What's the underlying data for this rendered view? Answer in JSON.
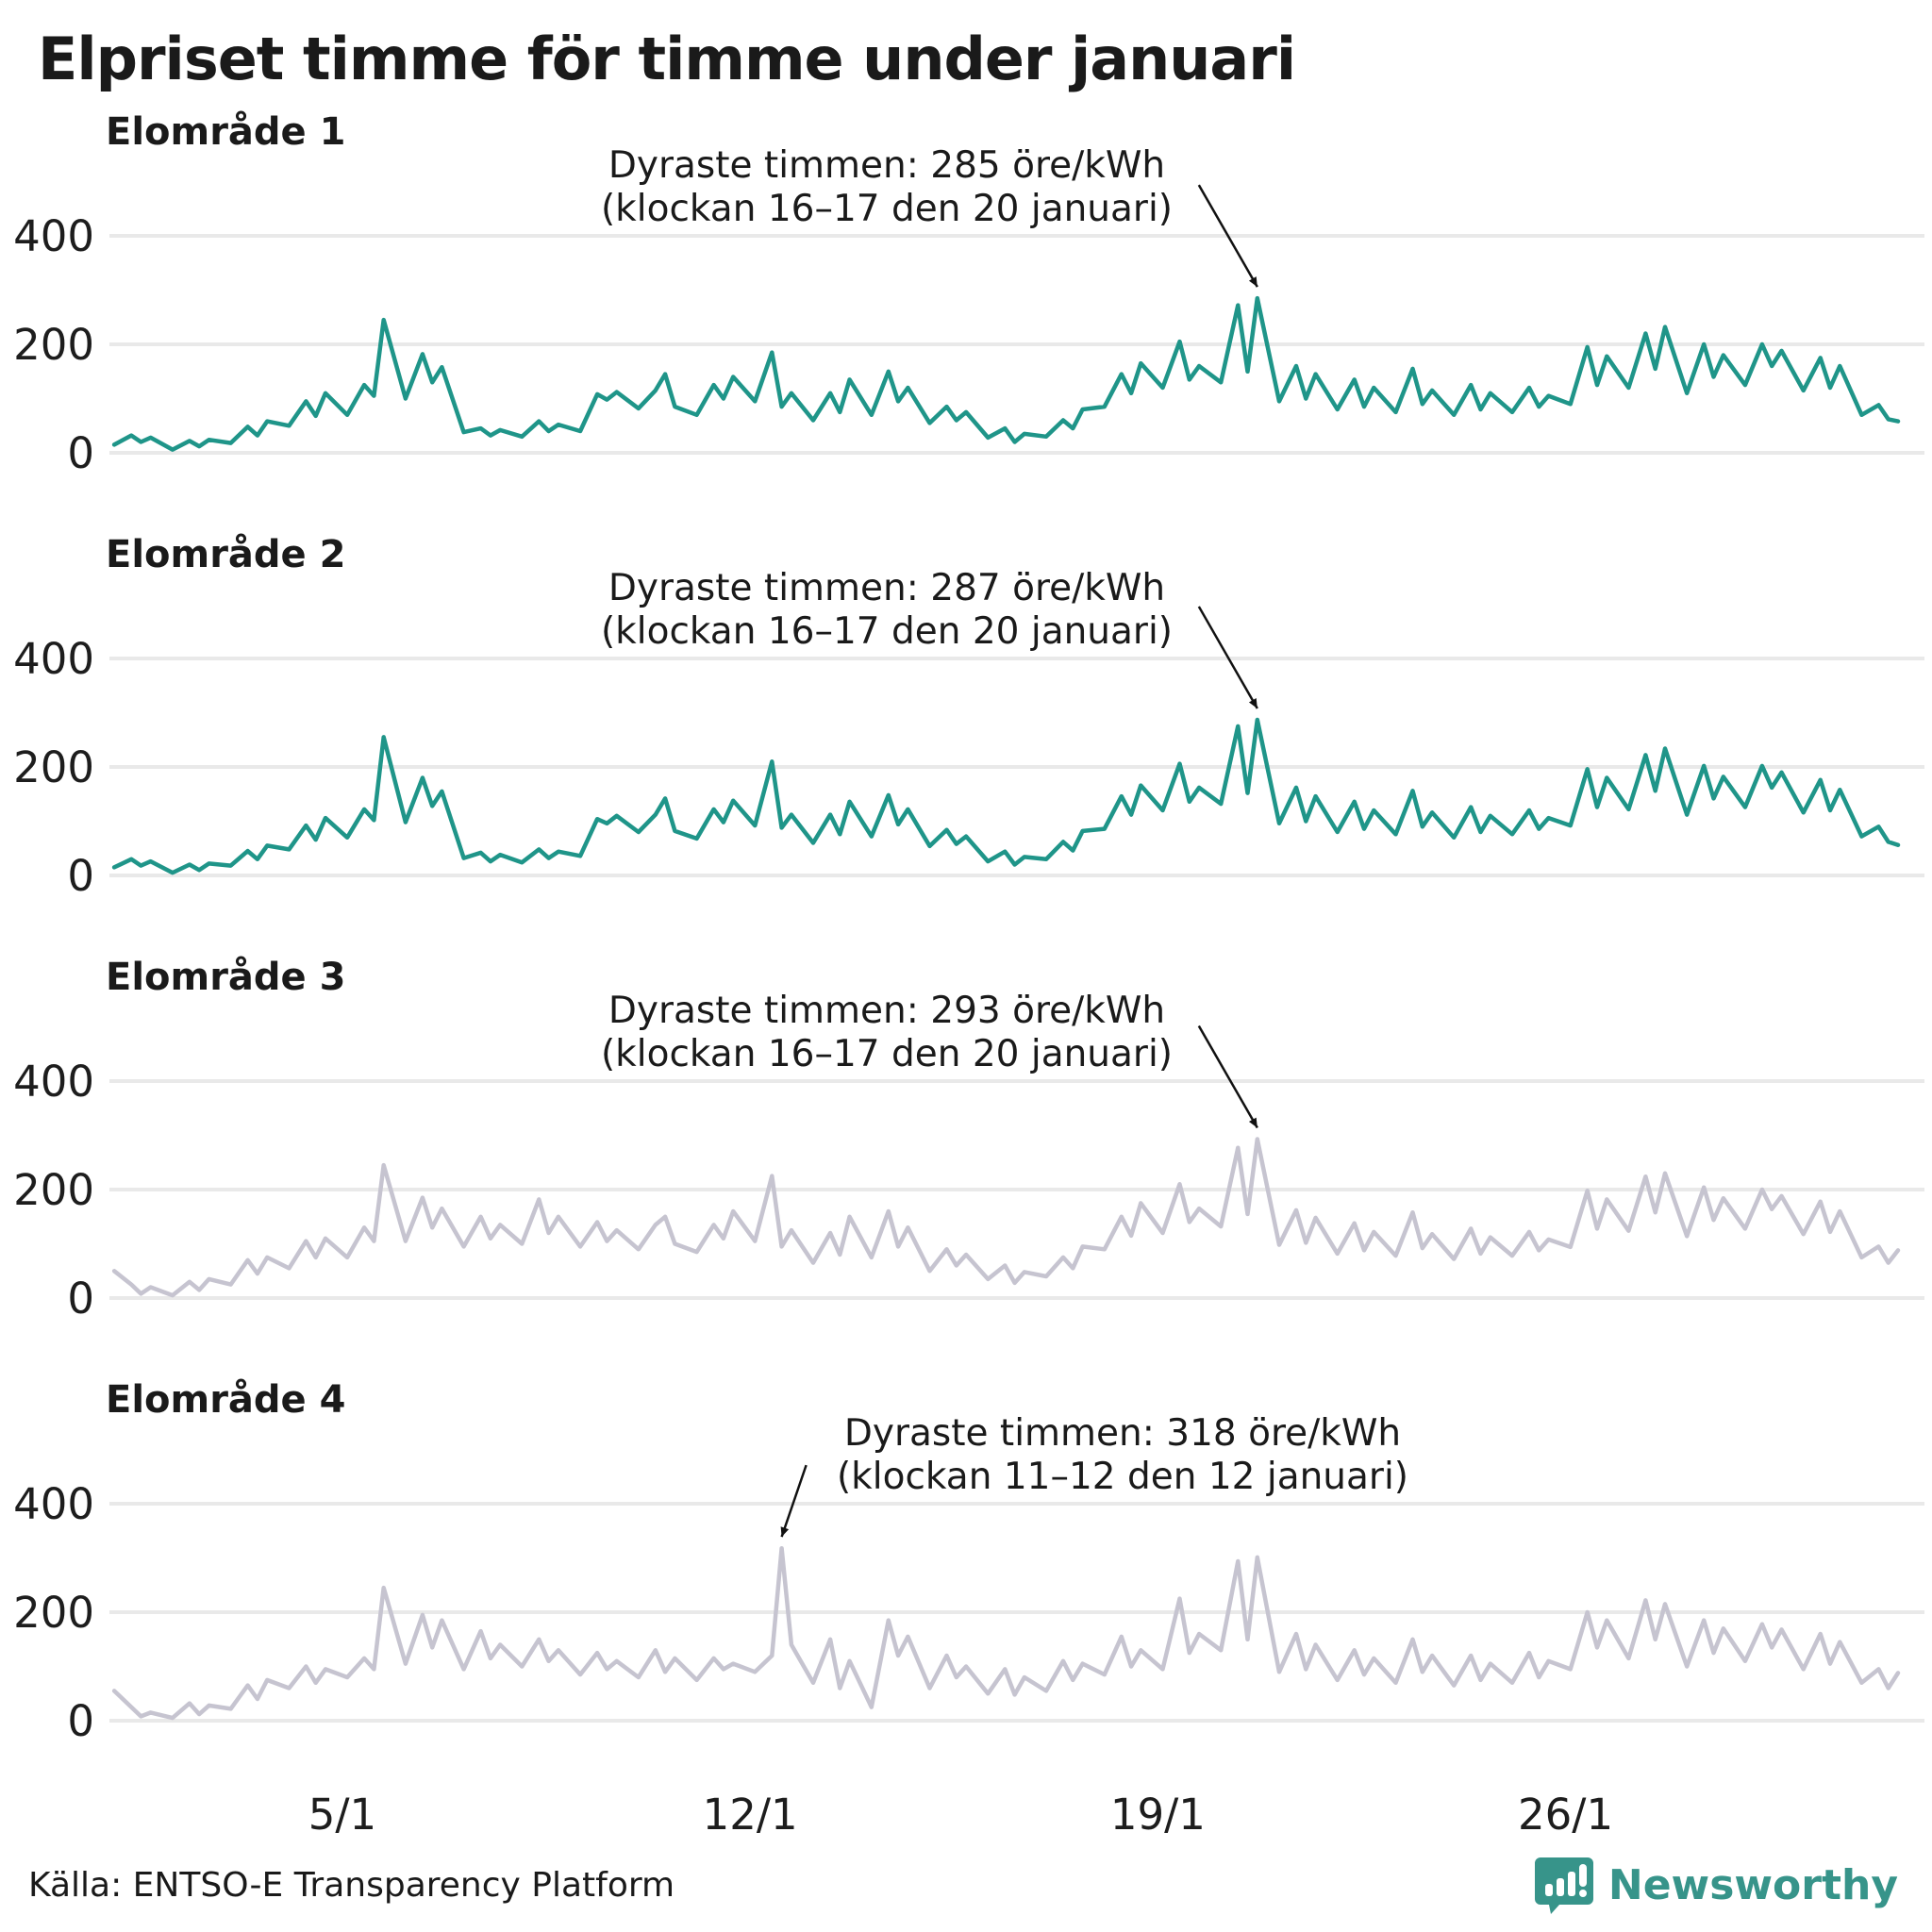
{
  "title": "Elpriset timme för timme under januari",
  "source": "Källa: ENTSO-E Transparency Platform",
  "brand": {
    "name": "Newsworthy",
    "color": "#37948a"
  },
  "colors": {
    "teal_line": "#1f9589",
    "gray_line": "#c6c4d0",
    "gridline": "#e9e9e9",
    "text": "#1a1a1a",
    "tick_text": "#1d1d1d",
    "arrow": "#111111"
  },
  "chart_data": {
    "type": "line",
    "title": "Elpriset timme för timme under januari",
    "xlabel": "",
    "ylabel": "öre/kWh",
    "ylim": [
      0,
      450
    ],
    "y_ticks": [
      0,
      200,
      400
    ],
    "grid": true,
    "legend": "none",
    "x_unit": "hours of January (744 h); sampled 4 times per day",
    "slot_hours": [
      2,
      9,
      13,
      17
    ],
    "x_ticks": [
      {
        "label": "5/1",
        "hour": 96
      },
      {
        "label": "12/1",
        "hour": 264
      },
      {
        "label": "19/1",
        "hour": 432
      },
      {
        "label": "26/1",
        "hour": 600
      }
    ],
    "panels": [
      {
        "name": "Elområde 1",
        "color": "#1f9589",
        "annotation": {
          "line1": "Dyraste timmen: 285 öre/kWh",
          "line2": "(klockan 16–17 den 20 januari)",
          "peak_hour": 473,
          "peak_value": 285,
          "side": "right"
        },
        "values": [
          15,
          32,
          20,
          28,
          6,
          22,
          12,
          24,
          18,
          48,
          32,
          58,
          50,
          95,
          68,
          110,
          70,
          125,
          105,
          245,
          100,
          182,
          130,
          158,
          38,
          45,
          32,
          42,
          30,
          58,
          40,
          52,
          40,
          108,
          98,
          112,
          82,
          115,
          145,
          85,
          70,
          125,
          100,
          140,
          95,
          185,
          85,
          110,
          60,
          110,
          75,
          135,
          70,
          150,
          95,
          120,
          55,
          85,
          60,
          75,
          28,
          45,
          20,
          35,
          30,
          60,
          45,
          80,
          85,
          145,
          110,
          165,
          120,
          205,
          135,
          160,
          130,
          272,
          150,
          285,
          95,
          160,
          100,
          145,
          80,
          135,
          85,
          120,
          75,
          155,
          90,
          115,
          70,
          125,
          80,
          110,
          75,
          120,
          85,
          105,
          90,
          195,
          125,
          178,
          120,
          220,
          155,
          232,
          110,
          200,
          140,
          180,
          125,
          200,
          160,
          188,
          115,
          175,
          120,
          160,
          70,
          88,
          62,
          58
        ]
      },
      {
        "name": "Elområde 2",
        "color": "#1f9589",
        "annotation": {
          "line1": "Dyraste timmen: 287 öre/kWh",
          "line2": "(klockan 16–17 den 20 januari)",
          "peak_hour": 473,
          "peak_value": 287,
          "side": "right"
        },
        "values": [
          15,
          30,
          18,
          26,
          5,
          20,
          10,
          22,
          18,
          45,
          30,
          55,
          48,
          92,
          66,
          106,
          70,
          122,
          102,
          255,
          98,
          180,
          128,
          155,
          32,
          42,
          26,
          38,
          24,
          48,
          32,
          44,
          36,
          104,
          96,
          110,
          80,
          112,
          142,
          82,
          68,
          122,
          98,
          138,
          92,
          210,
          88,
          112,
          60,
          112,
          76,
          136,
          72,
          148,
          94,
          122,
          54,
          84,
          58,
          72,
          26,
          44,
          20,
          34,
          30,
          62,
          46,
          82,
          86,
          146,
          112,
          166,
          120,
          206,
          136,
          162,
          132,
          275,
          152,
          287,
          96,
          162,
          100,
          146,
          80,
          136,
          86,
          120,
          76,
          156,
          90,
          116,
          70,
          126,
          80,
          110,
          76,
          120,
          86,
          106,
          92,
          196,
          126,
          180,
          122,
          222,
          156,
          234,
          112,
          202,
          142,
          182,
          126,
          202,
          162,
          190,
          116,
          176,
          120,
          158,
          72,
          90,
          62,
          56
        ]
      },
      {
        "name": "Elområde 3",
        "color": "#c6c4d0",
        "annotation": {
          "line1": "Dyraste timmen: 293 öre/kWh",
          "line2": "(klockan 16–17 den 20 januari)",
          "peak_hour": 473,
          "peak_value": 293,
          "side": "right"
        },
        "values": [
          50,
          25,
          8,
          20,
          5,
          30,
          15,
          35,
          25,
          70,
          45,
          75,
          55,
          105,
          75,
          110,
          75,
          130,
          105,
          245,
          105,
          185,
          130,
          165,
          95,
          150,
          110,
          135,
          100,
          182,
          120,
          150,
          95,
          140,
          105,
          125,
          90,
          135,
          150,
          100,
          85,
          135,
          110,
          160,
          105,
          225,
          95,
          125,
          65,
          120,
          80,
          150,
          75,
          160,
          95,
          130,
          50,
          90,
          60,
          80,
          35,
          60,
          28,
          48,
          40,
          75,
          55,
          95,
          90,
          150,
          115,
          175,
          120,
          210,
          140,
          165,
          132,
          277,
          155,
          293,
          98,
          162,
          102,
          148,
          82,
          138,
          88,
          122,
          78,
          158,
          92,
          118,
          72,
          128,
          82,
          112,
          78,
          122,
          88,
          108,
          94,
          198,
          128,
          182,
          124,
          224,
          158,
          230,
          114,
          204,
          144,
          184,
          128,
          200,
          164,
          188,
          118,
          178,
          122,
          160,
          75,
          95,
          65,
          88
        ]
      },
      {
        "name": "Elområde 4",
        "color": "#c6c4d0",
        "annotation": {
          "line1": "Dyraste timmen: 318 öre/kWh",
          "line2": "(klockan 11–12 den 12 januari)",
          "peak_hour": 277,
          "peak_value": 318,
          "side": "left"
        },
        "values": [
          55,
          25,
          8,
          15,
          5,
          32,
          12,
          28,
          22,
          65,
          40,
          75,
          60,
          100,
          70,
          95,
          80,
          115,
          95,
          245,
          105,
          195,
          135,
          185,
          95,
          165,
          115,
          140,
          100,
          150,
          110,
          130,
          85,
          125,
          95,
          110,
          80,
          130,
          90,
          115,
          75,
          115,
          95,
          105,
          90,
          120,
          318,
          140,
          70,
          150,
          60,
          110,
          25,
          185,
          120,
          155,
          60,
          120,
          80,
          100,
          50,
          95,
          48,
          80,
          55,
          110,
          75,
          105,
          85,
          155,
          100,
          130,
          95,
          225,
          125,
          160,
          130,
          294,
          150,
          301,
          90,
          160,
          95,
          140,
          75,
          130,
          85,
          115,
          70,
          150,
          90,
          120,
          65,
          120,
          75,
          105,
          70,
          125,
          80,
          110,
          95,
          200,
          135,
          185,
          115,
          222,
          150,
          215,
          100,
          185,
          125,
          170,
          110,
          178,
          135,
          168,
          95,
          160,
          105,
          145,
          70,
          95,
          60,
          88
        ]
      }
    ]
  }
}
